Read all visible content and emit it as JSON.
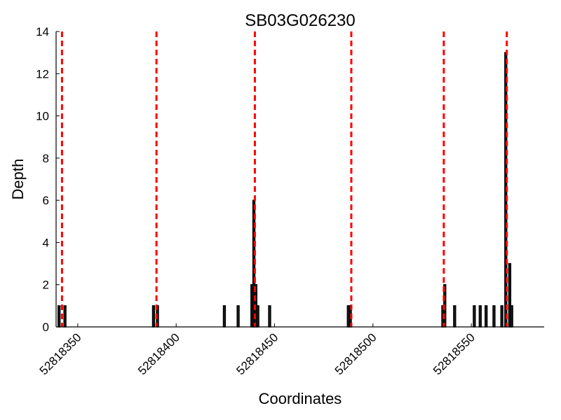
{
  "chart_data": {
    "type": "bar",
    "title": "SB03G026230",
    "xlabel": "Coordinates",
    "ylabel": "Depth",
    "xlim": [
      52818339,
      52818587
    ],
    "ylim": [
      0,
      14
    ],
    "yticks": [
      0,
      2,
      4,
      6,
      8,
      10,
      12,
      14
    ],
    "xticks": [
      52818350,
      52818400,
      52818450,
      52818500,
      52818550
    ],
    "bar_width": 1,
    "bars": [
      {
        "x": 52818340.5,
        "y": 1
      },
      {
        "x": 52818343.5,
        "y": 1
      },
      {
        "x": 52818388.5,
        "y": 1
      },
      {
        "x": 52818390.5,
        "y": 1
      },
      {
        "x": 52818424.5,
        "y": 1
      },
      {
        "x": 52818431.5,
        "y": 1
      },
      {
        "x": 52818438.5,
        "y": 2
      },
      {
        "x": 52818439.5,
        "y": 6
      },
      {
        "x": 52818440.5,
        "y": 2
      },
      {
        "x": 52818441.5,
        "y": 1
      },
      {
        "x": 52818447.5,
        "y": 1
      },
      {
        "x": 52818487.5,
        "y": 1
      },
      {
        "x": 52818488.5,
        "y": 1
      },
      {
        "x": 52818535.5,
        "y": 1
      },
      {
        "x": 52818536.5,
        "y": 2
      },
      {
        "x": 52818541.5,
        "y": 1
      },
      {
        "x": 52818551.5,
        "y": 1
      },
      {
        "x": 52818554.5,
        "y": 1
      },
      {
        "x": 52818557.5,
        "y": 1
      },
      {
        "x": 52818561.5,
        "y": 1
      },
      {
        "x": 52818565.5,
        "y": 1
      },
      {
        "x": 52818567.5,
        "y": 13
      },
      {
        "x": 52818569.5,
        "y": 3
      },
      {
        "x": 52818570.5,
        "y": 1
      }
    ],
    "vlines": [
      52818342,
      52818390,
      52818440,
      52818489,
      52818536,
      52818568
    ],
    "colors": {
      "bar_fill": "#222222",
      "bar_edge": "#000000",
      "vline": "#ff0000"
    },
    "grid": false
  }
}
